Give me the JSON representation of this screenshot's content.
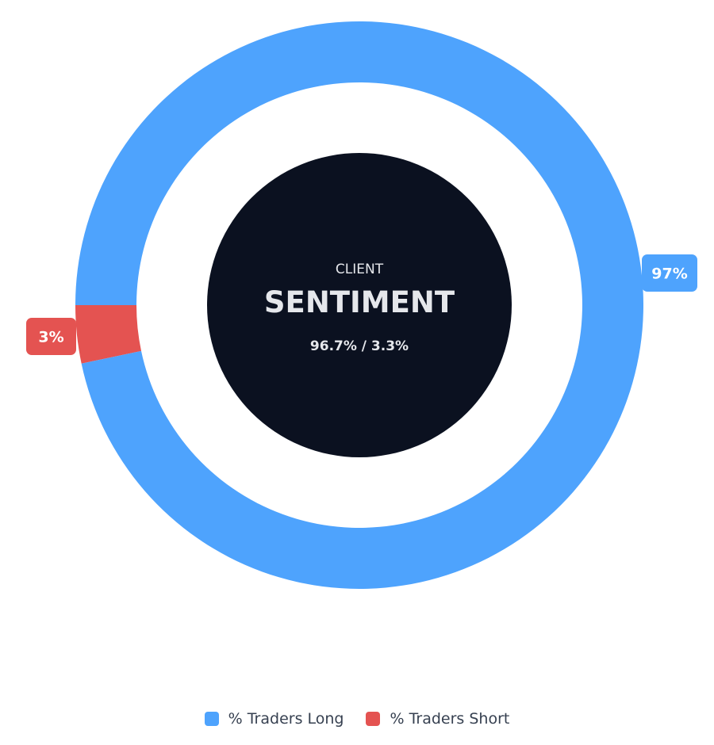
{
  "chart_data": {
    "type": "pie",
    "variant": "doughnut",
    "categories": [
      "% Traders Long",
      "% Traders Short"
    ],
    "values": [
      96.7,
      3.3
    ],
    "data_labels": [
      "97%",
      "3%"
    ],
    "colors": [
      "#4ea3fd",
      "#e45351"
    ],
    "legend_placement": "bottom",
    "center": {
      "subtitle": "CLIENT",
      "title": "SENTIMENT",
      "detail": "96.7% / 3.3%"
    }
  }
}
